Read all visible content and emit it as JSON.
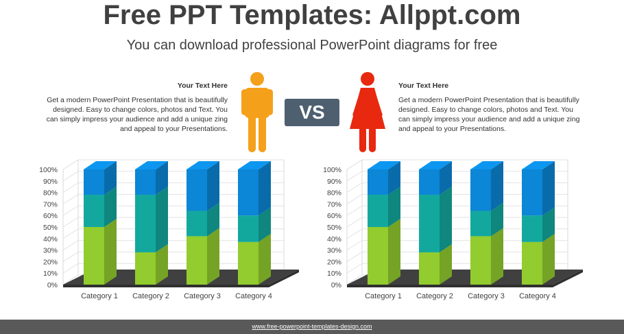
{
  "header": {
    "title": "Free PPT Templates: Allppt.com",
    "subtitle": "You can download professional PowerPoint diagrams for free"
  },
  "left_text": {
    "heading": "Your Text  Here",
    "body": "Get a modern PowerPoint  Presentation that is beautifully designed.  Easy to change colors, photos and Text. You can simply impress your audience and add a unique zing and appeal to your Presentations."
  },
  "right_text": {
    "heading": "Your Text  Here",
    "body": "Get a modern PowerPoint  Presentation that is beautifully designed.  Easy to change colors, photos and Text. You can simply impress your audience and add a unique zing and appeal to your Presentations."
  },
  "vs_label": "VS",
  "icons": {
    "left": "male-person-icon",
    "right": "female-person-icon"
  },
  "colors": {
    "male": "#F5A01A",
    "female": "#E8290F",
    "vs_bg": "#4E5F70",
    "series1": "#92CC2E",
    "series2": "#13A89E",
    "series3": "#0C86D6",
    "floor": "#404040",
    "footer": "#595959"
  },
  "footer": {
    "url": "www.free-powerpoint-templates-design.com"
  },
  "chart_data": [
    {
      "type": "bar",
      "stacked": true,
      "categories": [
        "Category 1",
        "Category 2",
        "Category 3",
        "Category 4"
      ],
      "series": [
        {
          "values": [
            50,
            28,
            42,
            37
          ]
        },
        {
          "values": [
            28,
            50,
            22,
            23
          ]
        },
        {
          "values": [
            22,
            22,
            36,
            40
          ]
        }
      ],
      "yticks": [
        "0%",
        "10%",
        "20%",
        "30%",
        "40%",
        "50%",
        "60%",
        "70%",
        "80%",
        "90%",
        "100%"
      ],
      "ylim": [
        0,
        100
      ],
      "grid": true,
      "legend": "none"
    },
    {
      "type": "bar",
      "stacked": true,
      "categories": [
        "Category 1",
        "Category 2",
        "Category 3",
        "Category 4"
      ],
      "series": [
        {
          "values": [
            50,
            28,
            42,
            37
          ]
        },
        {
          "values": [
            28,
            50,
            22,
            23
          ]
        },
        {
          "values": [
            22,
            22,
            36,
            40
          ]
        }
      ],
      "yticks": [
        "0%",
        "10%",
        "20%",
        "30%",
        "40%",
        "50%",
        "60%",
        "70%",
        "80%",
        "90%",
        "100%"
      ],
      "ylim": [
        0,
        100
      ],
      "grid": true,
      "legend": "none"
    }
  ]
}
